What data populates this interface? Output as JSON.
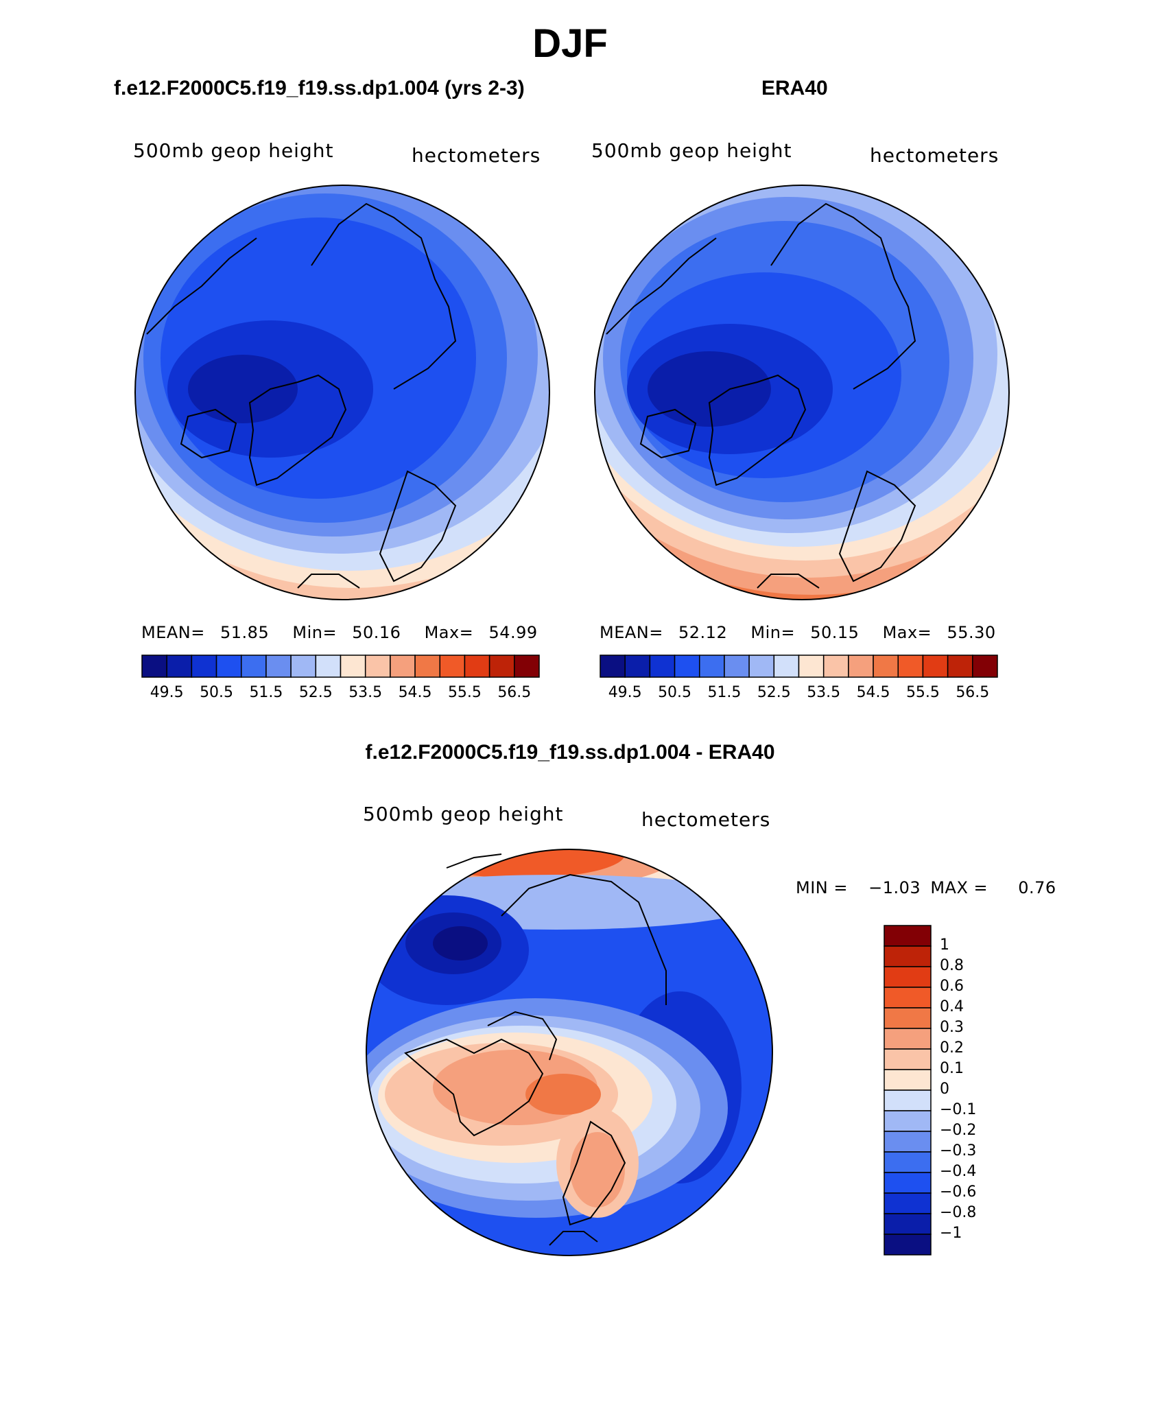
{
  "figure": {
    "title": "DJF",
    "panels": [
      {
        "case_title": "f.e12.F2000C5.f19_f19.ss.dp1.004 (yrs 2-3)",
        "left_subtitle": "500mb geop height",
        "right_subtitle": "hectometers",
        "stats": {
          "mean_label": "MEAN=",
          "mean": "51.85",
          "min_label": "Min=",
          "min": "50.16",
          "max_label": "Max=",
          "max": "54.99"
        }
      },
      {
        "case_title": "ERA40",
        "left_subtitle": "500mb geop height",
        "right_subtitle": "hectometers",
        "stats": {
          "mean_label": "MEAN=",
          "mean": "52.12",
          "min_label": "Min=",
          "min": "50.15",
          "max_label": "Max=",
          "max": "55.30"
        }
      },
      {
        "case_title": "f.e12.F2000C5.f19_f19.ss.dp1.004 - ERA40",
        "left_subtitle": "500mb geop height",
        "right_subtitle": "hectometers",
        "stats": {
          "min_label": "MIN =",
          "min": "−1.03",
          "max_label": "MAX =",
          "max": "0.76"
        }
      }
    ],
    "field_colorbar": {
      "colors": [
        "#0a0f82",
        "#0a1eaa",
        "#0f32d2",
        "#1e50f0",
        "#3c6ef0",
        "#6a8ef0",
        "#a0b8f5",
        "#d2e0fa",
        "#fde6d2",
        "#fac4a8",
        "#f5a07d",
        "#f07846",
        "#f05a28",
        "#e13c14",
        "#be2308",
        "#820005"
      ],
      "labels": [
        "49.5",
        "50.5",
        "51.5",
        "52.5",
        "53.5",
        "54.5",
        "55.5",
        "56.5"
      ]
    },
    "diff_colorbar": {
      "colors": [
        "#820005",
        "#be2308",
        "#e13c14",
        "#f05a28",
        "#f07846",
        "#f5a07d",
        "#fac4a8",
        "#fde6d2",
        "#d2e0fa",
        "#a0b8f5",
        "#6a8ef0",
        "#3c6ef0",
        "#1e50f0",
        "#0f32d2",
        "#0a1eaa",
        "#0a0f82"
      ],
      "labels": [
        "1",
        "0.8",
        "0.6",
        "0.4",
        "0.3",
        "0.2",
        "0.1",
        "0",
        "−0.1",
        "−0.2",
        "−0.3",
        "−0.4",
        "−0.6",
        "−0.8",
        "−1"
      ]
    }
  }
}
